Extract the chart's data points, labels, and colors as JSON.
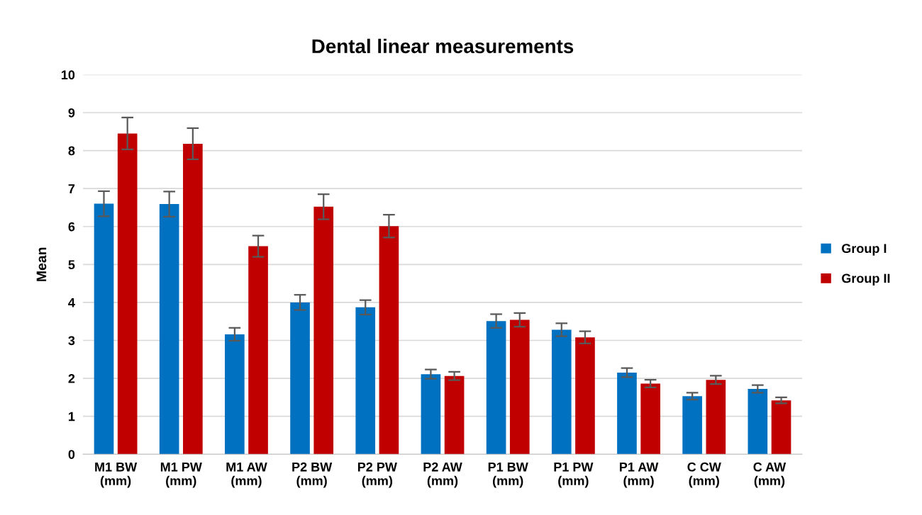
{
  "chart_data": {
    "type": "bar",
    "title": "Dental linear measurements",
    "ylabel": "Mean",
    "categories": [
      "M1 BW\n(mm)",
      "M1 PW\n(mm)",
      "M1 AW\n(mm)",
      "P2 BW\n(mm)",
      "P2 PW\n(mm)",
      "P2 AW\n(mm)",
      "P1 BW\n(mm)",
      "P1 PW\n(mm)",
      "P1 AW\n(mm)",
      "C CW\n(mm)",
      "C AW\n(mm)"
    ],
    "series": [
      {
        "name": "Group I",
        "color": "#0070c0",
        "values": [
          6.6,
          6.59,
          3.16,
          4.0,
          3.87,
          2.11,
          3.51,
          3.28,
          2.15,
          1.53,
          1.72
        ],
        "errors": [
          0.33,
          0.33,
          0.17,
          0.2,
          0.19,
          0.12,
          0.18,
          0.17,
          0.12,
          0.09,
          0.1
        ]
      },
      {
        "name": "Group II",
        "color": "#c00000",
        "values": [
          8.45,
          8.18,
          5.48,
          6.52,
          6.01,
          2.06,
          3.54,
          3.08,
          1.86,
          1.96,
          1.42
        ],
        "errors": [
          0.42,
          0.41,
          0.28,
          0.33,
          0.3,
          0.11,
          0.18,
          0.16,
          0.1,
          0.11,
          0.08
        ]
      }
    ],
    "ylim": [
      0,
      10
    ],
    "yticks": [
      0,
      1,
      2,
      3,
      4,
      5,
      6,
      7,
      8,
      9,
      10
    ],
    "grid": "y",
    "legend": "right"
  }
}
